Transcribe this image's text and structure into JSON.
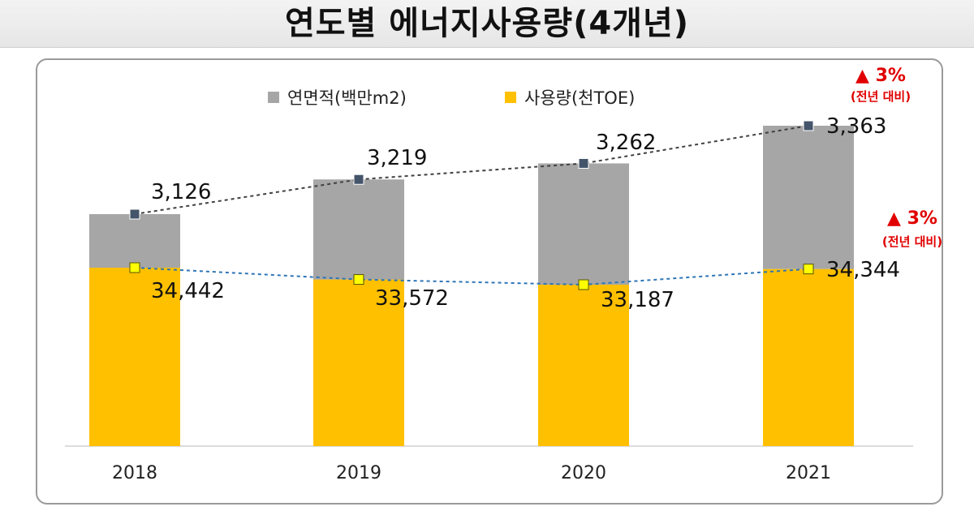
{
  "page": {
    "title": "연도별 에너지사용량(4개년)"
  },
  "legend": {
    "area_label": "연면적(백만m2)",
    "usage_label": "사용량(천TOE)"
  },
  "annotations": [
    {
      "id": "area",
      "change": "▲ 3%",
      "note": "(전년 대비)"
    },
    {
      "id": "usage",
      "change": "▲ 3%",
      "note": "(전년 대비)"
    }
  ],
  "colors": {
    "area": "#a6a6a6",
    "usage": "#ffc000",
    "area_marker": "#44546a",
    "usage_marker": "#ffff00",
    "area_line": "#404040",
    "usage_line": "#2e75b6",
    "annotation": "#e00000"
  },
  "chart_data": {
    "type": "bar",
    "categories": [
      "2018",
      "2019",
      "2020",
      "2021"
    ],
    "series": [
      {
        "name": "연면적(백만m2)",
        "values": [
          3126,
          3219,
          3262,
          3363
        ],
        "labels": [
          "3,126",
          "3,219",
          "3,262",
          "3,363"
        ]
      },
      {
        "name": "사용량(천TOE)",
        "values": [
          34442,
          33572,
          33187,
          34344
        ],
        "labels": [
          "34,442",
          "33,572",
          "33,187",
          "34,344"
        ]
      }
    ],
    "title": "연도별 에너지사용량(4개년)",
    "legend_position": "top",
    "grid": false
  }
}
